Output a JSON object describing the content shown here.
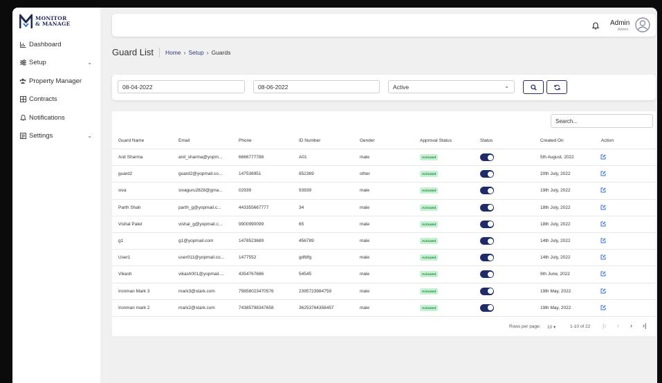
{
  "brand": {
    "line1": "MONITOR",
    "line2": "& MANAGE"
  },
  "sidebar": {
    "items": [
      {
        "label": "Dashboard",
        "icon": "chart-icon",
        "chevron": false
      },
      {
        "label": "Setup",
        "icon": "sliders-icon",
        "chevron": true
      },
      {
        "label": "Property Manager",
        "icon": "users-icon",
        "chevron": false
      },
      {
        "label": "Contracts",
        "icon": "table-icon",
        "chevron": false
      },
      {
        "label": "Notifications",
        "icon": "bell-icon",
        "chevron": false
      },
      {
        "label": "Settings",
        "icon": "list-icon",
        "chevron": true
      }
    ]
  },
  "topbar": {
    "user_name": "Admin",
    "user_role": "Admin"
  },
  "page": {
    "title": "Guard List",
    "breadcrumb": [
      "Home",
      "Setup",
      "Guards"
    ]
  },
  "filters": {
    "start_date": "08-04-2022",
    "end_date": "08-06-2022",
    "status": "Active"
  },
  "search": {
    "placeholder": "Search..."
  },
  "table": {
    "columns": [
      "Guard Name",
      "Email",
      "Phone",
      "ID Number",
      "Gender",
      "Approval Status",
      "Status",
      "Created On",
      "Action"
    ],
    "rows": [
      {
        "name": "Anil Sharma",
        "email": "anil_sharma@yopm...",
        "phone": "6666777788",
        "id": "A01",
        "gender": "male",
        "approval": "Activated",
        "created": "5th August, 2022"
      },
      {
        "name": "guard2",
        "email": "guard2@yopmail.co...",
        "phone": "147536951",
        "id": "852369",
        "gender": "other",
        "approval": "Activated",
        "created": "20th July, 2022"
      },
      {
        "name": "siva",
        "email": "sivaguru2828@gma...",
        "phone": "02939",
        "id": "93939",
        "gender": "male",
        "approval": "Activated",
        "created": "19th July, 2022"
      },
      {
        "name": "Parth Shah",
        "email": "parth_g@yopmail.c...",
        "phone": "443355667777",
        "id": "34",
        "gender": "male",
        "approval": "Activated",
        "created": "18th July, 2022"
      },
      {
        "name": "Vishal Patel",
        "email": "vishal_g@yopmail.c...",
        "phone": "9900990099",
        "id": "65",
        "gender": "male",
        "approval": "Activated",
        "created": "18th July, 2022"
      },
      {
        "name": "g1",
        "email": "g1@yopmail.com",
        "phone": "1478523689",
        "id": "456789",
        "gender": "male",
        "approval": "Activated",
        "created": "14th July, 2022"
      },
      {
        "name": "User1",
        "email": "user011@yopmail.co...",
        "phone": "1477552",
        "id": "gdfdfg",
        "gender": "male",
        "approval": "Activated",
        "created": "14th July, 2022"
      },
      {
        "name": "Vikash",
        "email": "vikash001@yopmail....",
        "phone": "4354767686",
        "id": "54545",
        "gender": "male",
        "approval": "Activated",
        "created": "9th June, 2022"
      },
      {
        "name": "Ironman Mark 3",
        "email": "mark3@stark.com",
        "phone": "79858023470576",
        "id": "2395723984759",
        "gender": "male",
        "approval": "Activated",
        "created": "19th May, 2022"
      },
      {
        "name": "Ironman mark 2",
        "email": "mark2@stark.com",
        "phone": "74385798347658",
        "id": "36253764356457",
        "gender": "male",
        "approval": "Activated",
        "created": "19th May, 2022"
      }
    ]
  },
  "pagination": {
    "rows_label": "Rows per page:",
    "rows_value": "10",
    "range": "1-10 of 22"
  },
  "colors": {
    "primary": "#1f2a6b",
    "badge_bg": "#c6f0d2",
    "badge_text": "#1e8a47"
  }
}
